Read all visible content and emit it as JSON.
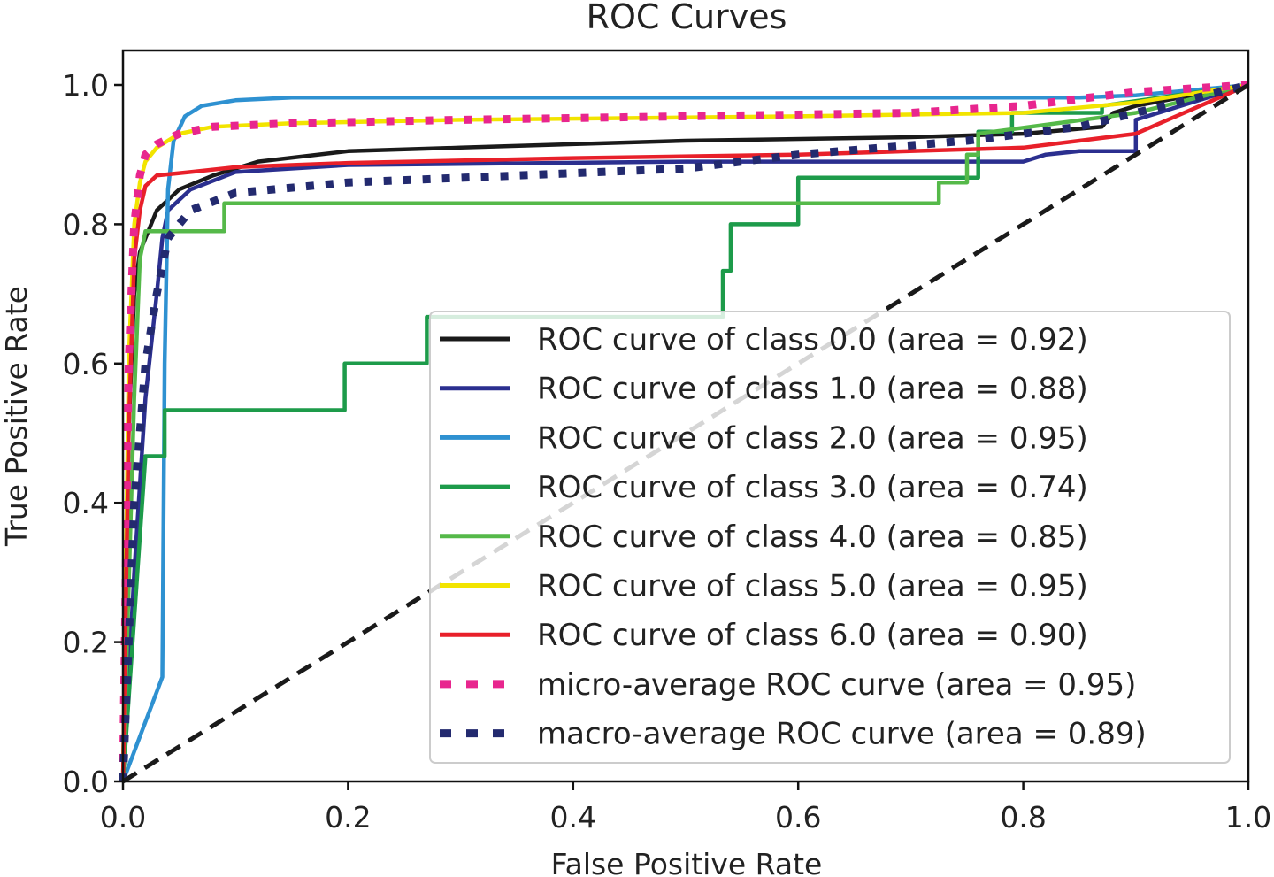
{
  "chart_data": {
    "type": "line",
    "title": "ROC Curves",
    "xlabel": "False Positive Rate",
    "ylabel": "True Positive Rate",
    "xlim": [
      0.0,
      1.0
    ],
    "ylim": [
      0.0,
      1.05
    ],
    "xticks": [
      "0.0",
      "0.2",
      "0.4",
      "0.6",
      "0.8",
      "1.0"
    ],
    "yticks": [
      "0.0",
      "0.2",
      "0.4",
      "0.6",
      "0.8",
      "1.0"
    ],
    "grid": false,
    "legend_position": "lower-right",
    "series": [
      {
        "name": "ROC curve of class 0.0 (area = 0.92)",
        "color": "#1a1a1a",
        "style": "solid",
        "x": [
          0.0,
          0.005,
          0.01,
          0.015,
          0.02,
          0.03,
          0.05,
          0.08,
          0.12,
          0.2,
          0.3,
          0.5,
          0.7,
          0.8,
          0.87,
          0.88,
          0.9,
          1.0
        ],
        "y": [
          0.0,
          0.5,
          0.7,
          0.76,
          0.78,
          0.82,
          0.85,
          0.87,
          0.89,
          0.905,
          0.91,
          0.92,
          0.925,
          0.93,
          0.94,
          0.96,
          0.97,
          1.0
        ]
      },
      {
        "name": "ROC curve of class 1.0 (area = 0.88)",
        "color": "#2b2f8f",
        "style": "solid",
        "x": [
          0.0,
          0.01,
          0.02,
          0.03,
          0.035,
          0.04,
          0.06,
          0.1,
          0.2,
          0.5,
          0.8,
          0.82,
          0.85,
          0.88,
          0.9,
          0.9,
          1.0
        ],
        "y": [
          0.0,
          0.3,
          0.55,
          0.7,
          0.78,
          0.82,
          0.85,
          0.875,
          0.885,
          0.89,
          0.89,
          0.9,
          0.905,
          0.905,
          0.905,
          0.95,
          1.0
        ]
      },
      {
        "name": "ROC curve of class 2.0 (area = 0.95)",
        "color": "#2e91d1",
        "style": "solid",
        "x": [
          0.0,
          0.035,
          0.037,
          0.04,
          0.045,
          0.055,
          0.07,
          0.1,
          0.15,
          0.3,
          0.6,
          0.85,
          0.9,
          1.0
        ],
        "y": [
          0.0,
          0.15,
          0.6,
          0.85,
          0.92,
          0.955,
          0.97,
          0.978,
          0.982,
          0.982,
          0.982,
          0.982,
          0.985,
          1.0
        ]
      },
      {
        "name": "ROC curve of class 3.0 (area = 0.74)",
        "color": "#1d9b4a",
        "style": "solid",
        "x": [
          0.0,
          0.02,
          0.02,
          0.037,
          0.037,
          0.197,
          0.197,
          0.27,
          0.27,
          0.533,
          0.533,
          0.54,
          0.54,
          0.6,
          0.6,
          0.76,
          0.76,
          0.79,
          0.79,
          0.87,
          0.87,
          1.0
        ],
        "y": [
          0.0,
          0.467,
          0.467,
          0.467,
          0.533,
          0.533,
          0.6,
          0.6,
          0.667,
          0.667,
          0.733,
          0.733,
          0.8,
          0.8,
          0.867,
          0.867,
          0.933,
          0.933,
          0.96,
          0.96,
          0.97,
          1.0
        ]
      },
      {
        "name": "ROC curve of class 4.0 (area = 0.85)",
        "color": "#55b949",
        "style": "solid",
        "x": [
          0.0,
          0.01,
          0.015,
          0.02,
          0.09,
          0.09,
          0.725,
          0.725,
          0.75,
          0.75,
          0.76,
          0.76,
          0.9,
          1.0
        ],
        "y": [
          0.0,
          0.55,
          0.75,
          0.79,
          0.79,
          0.83,
          0.83,
          0.86,
          0.86,
          0.9,
          0.9,
          0.93,
          0.96,
          1.0
        ]
      },
      {
        "name": "ROC curve of class 5.0 (area = 0.95)",
        "color": "#f2e400",
        "style": "solid",
        "x": [
          0.0,
          0.005,
          0.01,
          0.015,
          0.02,
          0.03,
          0.05,
          0.08,
          0.15,
          0.3,
          0.6,
          0.8,
          0.9,
          1.0
        ],
        "y": [
          0.0,
          0.6,
          0.8,
          0.86,
          0.89,
          0.91,
          0.93,
          0.94,
          0.945,
          0.95,
          0.955,
          0.96,
          0.975,
          1.0
        ]
      },
      {
        "name": "ROC curve of class 6.0 (area = 0.90)",
        "color": "#e8202a",
        "style": "solid",
        "x": [
          0.0,
          0.005,
          0.01,
          0.015,
          0.02,
          0.03,
          0.06,
          0.1,
          0.2,
          0.4,
          0.6,
          0.8,
          0.85,
          0.9,
          1.0
        ],
        "y": [
          0.0,
          0.5,
          0.75,
          0.82,
          0.855,
          0.87,
          0.875,
          0.882,
          0.888,
          0.895,
          0.9,
          0.91,
          0.92,
          0.93,
          1.0
        ]
      },
      {
        "name": "micro-average ROC curve (area = 0.95)",
        "color": "#e8268e",
        "style": "dotted",
        "x": [
          0.0,
          0.005,
          0.01,
          0.015,
          0.02,
          0.03,
          0.05,
          0.08,
          0.15,
          0.3,
          0.5,
          0.7,
          0.8,
          0.85,
          0.9,
          1.0
        ],
        "y": [
          0.0,
          0.6,
          0.8,
          0.87,
          0.9,
          0.915,
          0.93,
          0.94,
          0.945,
          0.95,
          0.955,
          0.96,
          0.97,
          0.98,
          0.99,
          1.0
        ]
      },
      {
        "name": "macro-average ROC curve (area = 0.89)",
        "color": "#232a6f",
        "style": "dotted",
        "x": [
          0.0,
          0.01,
          0.02,
          0.03,
          0.04,
          0.06,
          0.1,
          0.2,
          0.35,
          0.5,
          0.6,
          0.75,
          0.85,
          0.9,
          1.0
        ],
        "y": [
          0.0,
          0.4,
          0.6,
          0.7,
          0.78,
          0.82,
          0.845,
          0.86,
          0.87,
          0.88,
          0.9,
          0.92,
          0.94,
          0.96,
          1.0
        ]
      }
    ],
    "reference_line": {
      "x": [
        0.0,
        1.0
      ],
      "y": [
        0.0,
        1.0
      ],
      "color": "#1a1a1a",
      "style": "dashed"
    }
  }
}
